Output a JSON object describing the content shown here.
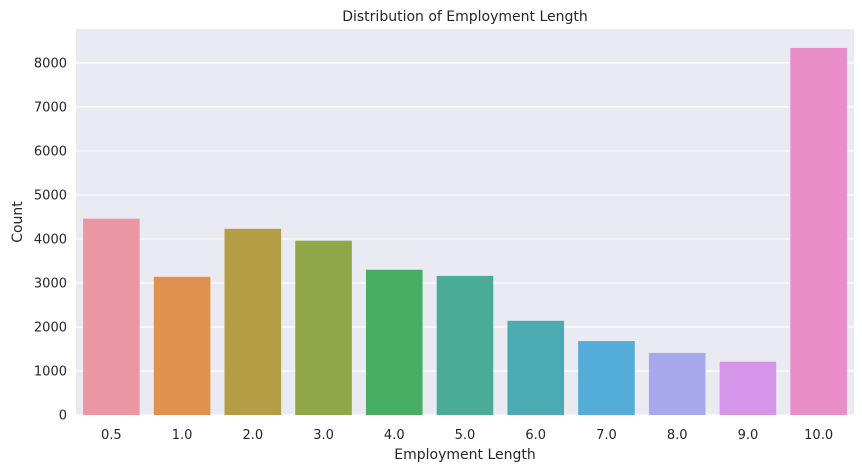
{
  "chart_data": {
    "type": "bar",
    "title": "Distribution of Employment Length",
    "xlabel": "Employment Length",
    "ylabel": "Count",
    "categories": [
      "0.5",
      "1.0",
      "2.0",
      "3.0",
      "4.0",
      "5.0",
      "6.0",
      "7.0",
      "8.0",
      "9.0",
      "10.0"
    ],
    "values": [
      4460,
      3140,
      4230,
      3960,
      3300,
      3160,
      2140,
      1680,
      1410,
      1210,
      8340
    ],
    "ylim": [
      0,
      8770
    ],
    "yticks": [
      0,
      1000,
      2000,
      3000,
      4000,
      5000,
      6000,
      7000,
      8000
    ],
    "grid": true,
    "background": "#EAEAF2",
    "colors": [
      "#EA96A3",
      "#E0914E",
      "#B39E46",
      "#8FA746",
      "#48AE64",
      "#4AAB96",
      "#4BAAB2",
      "#54ADD9",
      "#A8A9EC",
      "#D695E8",
      "#EA8ECA"
    ]
  }
}
